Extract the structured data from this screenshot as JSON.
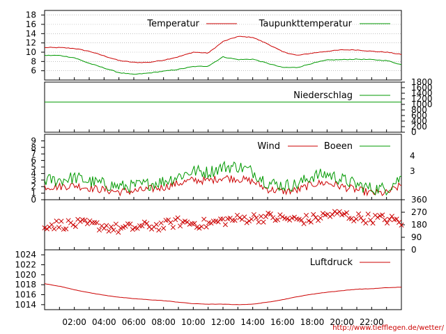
{
  "chart_data": [
    {
      "type": "line",
      "name": "temperature-panel",
      "ylim": [
        4,
        19
      ],
      "yticks": [
        6,
        8,
        10,
        12,
        14,
        16,
        18
      ],
      "grid": true,
      "legend_position": "top-right",
      "x": [
        "01:00",
        "02:00",
        "03:00",
        "04:00",
        "05:00",
        "06:00",
        "07:00",
        "08:00",
        "09:00",
        "10:00",
        "11:00",
        "12:00",
        "13:00",
        "14:00",
        "15:00",
        "16:00",
        "17:00",
        "18:00",
        "19:00",
        "20:00",
        "21:00",
        "22:00",
        "23:00",
        "24:00"
      ],
      "series": [
        {
          "name": "Temperatur",
          "color": "#cc0000",
          "values": [
            11.0,
            10.8,
            10.2,
            9.2,
            8.2,
            7.8,
            7.8,
            8.3,
            9.0,
            10.0,
            9.8,
            12.3,
            13.4,
            13.2,
            11.8,
            10.1,
            9.3,
            9.8,
            10.2,
            10.5,
            10.5,
            10.2,
            10.0,
            9.5
          ]
        },
        {
          "name": "Taupunkttemperatur",
          "color": "#009900",
          "values": [
            9.3,
            8.8,
            7.6,
            6.6,
            5.6,
            5.2,
            5.5,
            5.9,
            6.3,
            6.9,
            7.0,
            9.0,
            8.4,
            8.5,
            7.6,
            6.7,
            6.7,
            7.6,
            8.3,
            8.4,
            8.5,
            8.4,
            8.2,
            7.3
          ]
        }
      ]
    },
    {
      "type": "line",
      "name": "precipitation-panel",
      "ylim": [
        0,
        1800
      ],
      "yticks": [
        0,
        200,
        400,
        600,
        800,
        1000,
        1200,
        1400,
        1600,
        1800
      ],
      "legend_position": "top-right",
      "series": [
        {
          "name": "Niederschlag",
          "color": "#009900",
          "values": [
            1080,
            1080
          ]
        }
      ]
    },
    {
      "type": "line",
      "name": "wind-panel",
      "ylim": [
        0,
        10
      ],
      "yticks": [
        0,
        1,
        2,
        3,
        4,
        5,
        6,
        7,
        8,
        9
      ],
      "right_ticks": [
        "3",
        "4"
      ],
      "legend_position": "top-right",
      "x": [
        "01:00",
        "02:00",
        "03:00",
        "04:00",
        "05:00",
        "06:00",
        "07:00",
        "08:00",
        "09:00",
        "10:00",
        "11:00",
        "12:00",
        "13:00",
        "14:00",
        "15:00",
        "16:00",
        "17:00",
        "18:00",
        "19:00",
        "20:00",
        "21:00",
        "22:00",
        "23:00",
        "24:00"
      ],
      "series": [
        {
          "name": "Wind",
          "color": "#cc0000",
          "values": [
            2.0,
            2.2,
            1.8,
            1.5,
            1.2,
            1.3,
            1.6,
            1.9,
            2.5,
            3.0,
            2.9,
            3.4,
            3.2,
            2.8,
            1.6,
            1.3,
            1.4,
            2.4,
            2.6,
            2.0,
            1.5,
            1.0,
            1.0,
            2.2
          ]
        },
        {
          "name": "Boeen",
          "color": "#009900",
          "values": [
            3.0,
            3.4,
            2.8,
            2.4,
            2.0,
            2.1,
            2.4,
            2.8,
            3.6,
            4.4,
            4.2,
            5.0,
            5.1,
            4.3,
            2.6,
            2.2,
            2.3,
            3.6,
            3.9,
            3.1,
            2.3,
            1.7,
            1.7,
            3.4
          ]
        }
      ]
    },
    {
      "type": "scatter",
      "name": "wind-direction-panel",
      "ylim": [
        0,
        360
      ],
      "yticks": [
        0,
        90,
        180,
        270,
        360
      ],
      "marker": "x",
      "color": "#cc0000",
      "x": [
        "01:00",
        "02:00",
        "03:00",
        "04:00",
        "05:00",
        "06:00",
        "07:00",
        "08:00",
        "09:00",
        "10:00",
        "11:00",
        "12:00",
        "13:00",
        "14:00",
        "15:00",
        "16:00",
        "17:00",
        "18:00",
        "19:00",
        "20:00",
        "21:00",
        "22:00",
        "23:00",
        "24:00"
      ],
      "values": [
        180,
        185,
        180,
        170,
        150,
        160,
        170,
        175,
        200,
        190,
        185,
        210,
        220,
        230,
        235,
        225,
        215,
        220,
        250,
        255,
        230,
        225,
        220,
        200
      ]
    },
    {
      "type": "line",
      "name": "pressure-panel",
      "ylim": [
        1013,
        1025
      ],
      "yticks": [
        1014,
        1016,
        1018,
        1020,
        1022,
        1024
      ],
      "legend_position": "top-right",
      "x": [
        "00:00",
        "01:00",
        "02:00",
        "03:00",
        "04:00",
        "05:00",
        "06:00",
        "07:00",
        "08:00",
        "09:00",
        "10:00",
        "11:00",
        "12:00",
        "13:00",
        "14:00",
        "15:00",
        "16:00",
        "17:00",
        "18:00",
        "19:00",
        "20:00",
        "21:00",
        "22:00",
        "23:00",
        "24:00"
      ],
      "series": [
        {
          "name": "Luftdruck",
          "color": "#cc0000",
          "values": [
            1018.2,
            1017.7,
            1017.0,
            1016.4,
            1015.9,
            1015.5,
            1015.2,
            1015.0,
            1014.8,
            1014.5,
            1014.2,
            1014.1,
            1014.1,
            1014.0,
            1014.1,
            1014.5,
            1015.0,
            1015.6,
            1016.1,
            1016.5,
            1016.8,
            1017.1,
            1017.2,
            1017.4,
            1017.5
          ]
        }
      ]
    }
  ],
  "xaxis": {
    "tick_labels": [
      "02:00",
      "04:00",
      "06:00",
      "08:00",
      "10:00",
      "12:00",
      "14:00",
      "16:00",
      "18:00",
      "20:00",
      "22:00"
    ]
  },
  "source_url": "http://www.tiefflegen.de/wetter/"
}
